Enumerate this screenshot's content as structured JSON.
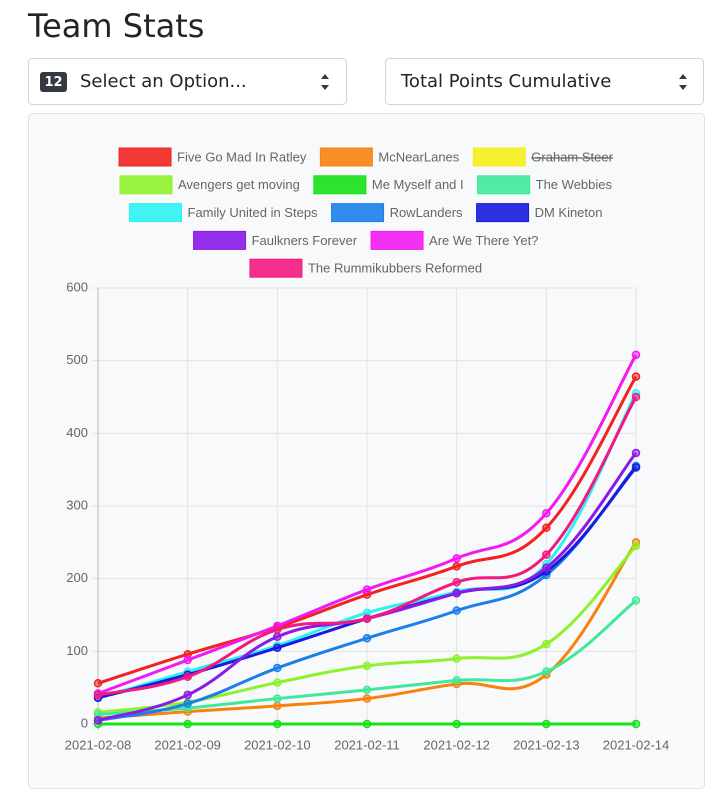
{
  "header": {
    "title": "Team Stats"
  },
  "filters": {
    "left": {
      "badge": "12",
      "label": "Select an Option..."
    },
    "right": {
      "label": "Total Points Cumulative"
    }
  },
  "chart_data": {
    "type": "line",
    "categories": [
      "2021-02-08",
      "2021-02-09",
      "2021-02-10",
      "2021-02-11",
      "2021-02-12",
      "2021-02-13",
      "2021-02-14"
    ],
    "ylim": [
      0,
      600
    ],
    "yticks": [
      0,
      100,
      200,
      300,
      400,
      500,
      600
    ],
    "grid": true,
    "legend": "top",
    "series": [
      {
        "name": "Five Go Mad In Ratley",
        "color": "#f22222",
        "values": [
          56,
          96,
          133,
          178,
          217,
          270,
          478
        ]
      },
      {
        "name": "McNearLanes",
        "color": "#f7820f",
        "values": [
          8,
          17,
          25,
          35,
          55,
          68,
          250
        ]
      },
      {
        "name": "Graham Steer",
        "color": "#f5ef1a",
        "hidden": true
      },
      {
        "name": "Avengers get moving",
        "color": "#8ef22b",
        "values": [
          16,
          30,
          57,
          80,
          90,
          110,
          245
        ]
      },
      {
        "name": "Me Myself and I",
        "color": "#17e017",
        "values": [
          0,
          0,
          0,
          0,
          0,
          0,
          0
        ]
      },
      {
        "name": "The Webbies",
        "color": "#3fe89a",
        "values": [
          13,
          22,
          35,
          47,
          60,
          72,
          170
        ]
      },
      {
        "name": "Family United in Steps",
        "color": "#2ef2f2",
        "values": [
          36,
          72,
          108,
          153,
          182,
          220,
          455
        ]
      },
      {
        "name": "RowLanders",
        "color": "#1a7fe8",
        "values": [
          5,
          28,
          77,
          118,
          156,
          205,
          355
        ]
      },
      {
        "name": "DM Kineton",
        "color": "#1a1ae0",
        "values": [
          36,
          68,
          105,
          145,
          180,
          210,
          353
        ]
      },
      {
        "name": "Faulkners Forever",
        "color": "#8a1ae8",
        "values": [
          5,
          40,
          120,
          145,
          180,
          215,
          373
        ]
      },
      {
        "name": "Are We There Yet?",
        "color": "#f21af2",
        "values": [
          42,
          88,
          135,
          185,
          228,
          290,
          508
        ]
      },
      {
        "name": "The Rummikubbers Reformed",
        "color": "#f21a80",
        "values": [
          40,
          65,
          130,
          145,
          195,
          233,
          450
        ]
      }
    ]
  }
}
